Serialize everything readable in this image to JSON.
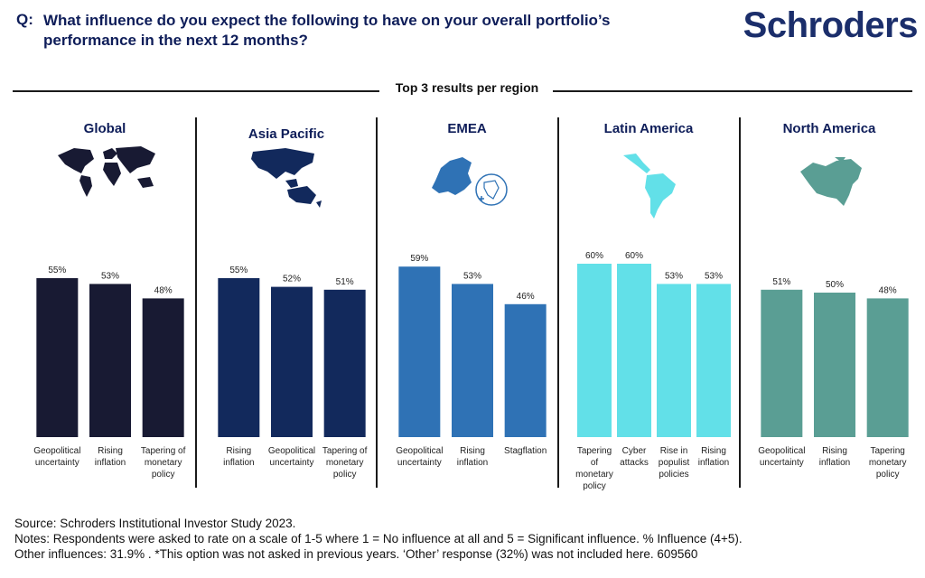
{
  "header": {
    "q_label": "Q:",
    "question": "What influence do you expect the following to have on your overall portfolio’s performance in the next 12 months?",
    "logo": "Schroders"
  },
  "subtitle": "Top 3 results per region",
  "regions": [
    {
      "name": "Global",
      "map_icon": "world-map-icon"
    },
    {
      "name": "Asia Pacific",
      "map_icon": "asia-pacific-map-icon"
    },
    {
      "name": "EMEA",
      "map_icon": "emea-map-icon"
    },
    {
      "name": "Latin America",
      "map_icon": "latin-america-map-icon"
    },
    {
      "name": "North America",
      "map_icon": "north-america-map-icon"
    }
  ],
  "chart_data": [
    {
      "type": "bar",
      "title": "Global",
      "color": "#181a33",
      "categories": [
        "Geopolitical uncertainty",
        "Rising inflation",
        "Tapering of monetary policy"
      ],
      "values": [
        55,
        53,
        48
      ],
      "value_labels": [
        "55%",
        "53%",
        "48%"
      ],
      "ylim": [
        0,
        100
      ]
    },
    {
      "type": "bar",
      "title": "Asia Pacific",
      "color": "#12295c",
      "categories": [
        "Rising inflation",
        "Geopolitical uncertainty",
        "Tapering of monetary policy"
      ],
      "values": [
        55,
        52,
        51
      ],
      "value_labels": [
        "55%",
        "52%",
        "51%"
      ],
      "ylim": [
        0,
        100
      ]
    },
    {
      "type": "bar",
      "title": "EMEA",
      "color": "#2f72b5",
      "categories": [
        "Geopolitical uncertainty",
        "Rising inflation",
        "Stagflation"
      ],
      "values": [
        59,
        53,
        46
      ],
      "value_labels": [
        "59%",
        "53%",
        "46%"
      ],
      "ylim": [
        0,
        100
      ]
    },
    {
      "type": "bar",
      "title": "Latin America",
      "color": "#62e0e8",
      "categories": [
        "Tapering of monetary policy",
        "Cyber attacks",
        "Rise in populist policies",
        "Rising inflation"
      ],
      "values": [
        60,
        60,
        53,
        53
      ],
      "value_labels": [
        "60%",
        "60%",
        "53%",
        "53%"
      ],
      "ylim": [
        0,
        100
      ]
    },
    {
      "type": "bar",
      "title": "North America",
      "color": "#5a9e94",
      "categories": [
        "Geopolitical uncertainty",
        "Rising inflation",
        "Tapering monetary policy"
      ],
      "values": [
        51,
        50,
        48
      ],
      "value_labels": [
        "51%",
        "50%",
        "48%"
      ],
      "ylim": [
        0,
        100
      ]
    }
  ],
  "footer": {
    "source": "Source: Schroders Institutional Investor Study 2023.",
    "notes": "Notes: Respondents were asked to rate on a scale of 1-5 where 1 = No influence at all and 5 = Significant influence. % Influence (4+5).",
    "other": "Other influences: 31.9% . *This option was not asked in previous years. ‘Other’ response (32%) was not included here. 609560"
  }
}
